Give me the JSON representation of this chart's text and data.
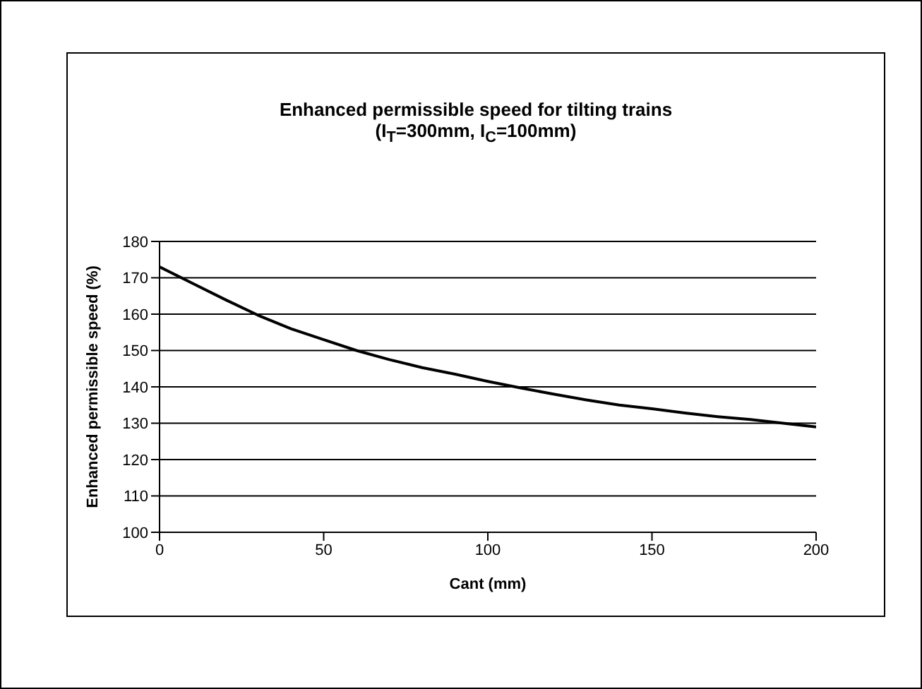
{
  "chart_data": {
    "type": "line",
    "title": "Enhanced permissible speed for tilting trains",
    "subtitle": "(I$_{T}$=300mm, I$_{C}$=100mm)",
    "xlabel": "Cant (mm)",
    "ylabel": "Enhanced permissible speed (%)",
    "x": [
      0,
      10,
      20,
      30,
      40,
      50,
      60,
      70,
      80,
      90,
      100,
      110,
      120,
      130,
      140,
      150,
      160,
      170,
      180,
      190,
      200
    ],
    "series": [
      {
        "color": "#000000",
        "values": [
          173,
          168.5,
          164,
          159.7,
          156,
          153,
          150,
          147.5,
          145.3,
          143.5,
          141.5,
          139.7,
          138,
          136.4,
          135,
          134,
          132.8,
          131.8,
          131,
          130,
          129
        ]
      }
    ],
    "xlim": [
      0,
      200
    ],
    "xticks": [
      0,
      50,
      100,
      150,
      200
    ],
    "ylim": [
      100,
      180
    ],
    "yticks": [
      100,
      110,
      120,
      130,
      140,
      150,
      160,
      170,
      180
    ],
    "grid": "y",
    "marker": "none",
    "line_style": "solid"
  }
}
